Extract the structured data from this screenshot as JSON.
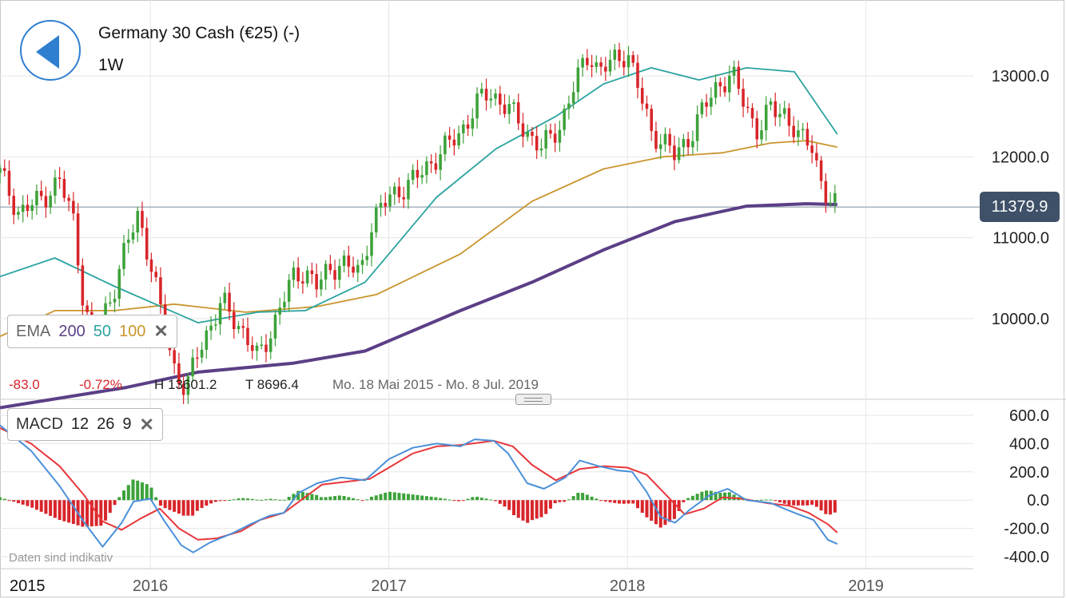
{
  "header": {
    "back_label": "back",
    "title": "Germany 30 Cash (€25) (-)",
    "period": "1W"
  },
  "indicators": {
    "ema": {
      "label": "EMA",
      "periods": [
        "200",
        "50",
        "100"
      ],
      "colors": [
        "#5b3f86",
        "#2aa3a0",
        "#c9952d"
      ],
      "close": "✕"
    },
    "macd": {
      "label": "MACD",
      "params": [
        "12",
        "26",
        "9"
      ],
      "close": "✕"
    }
  },
  "stats": {
    "change": "-83.0",
    "change_pct": "-0.72%",
    "high": "H 13601.2",
    "low": "T 8696.4",
    "range": "Mo. 18 Mai 2015 - Mo. 8 Jul. 2019"
  },
  "current_price": "11379.9",
  "disclaimer": "Daten sind indikativ",
  "colors": {
    "up": "#3da23a",
    "down": "#d8252a",
    "macd_line": "#4a90d9",
    "signal_line": "#e8363a",
    "ema200": "#5b3f86",
    "ema50": "#2aa3a0",
    "ema100": "#c9952d",
    "price_line": "#8a9aa8"
  },
  "chart_data": {
    "type": "candlestick",
    "price_axis": {
      "ticks": [
        "13000.0",
        "12000.0",
        "11000.0",
        "10000.0"
      ],
      "tick_values": [
        13000,
        12000,
        11000,
        10000
      ],
      "range": [
        8900,
        13950
      ]
    },
    "x_axis": {
      "labels": [
        "2015",
        "2016",
        "2017",
        "2018",
        "2019"
      ],
      "years": [
        2015,
        2016,
        2017,
        2018,
        2019
      ],
      "range": [
        2015.37,
        2019.45
      ]
    },
    "ema_waypoints": {
      "ema50": [
        [
          2015.37,
          10520
        ],
        [
          2015.6,
          10750
        ],
        [
          2015.85,
          10400
        ],
        [
          2016.2,
          9950
        ],
        [
          2016.45,
          10080
        ],
        [
          2016.65,
          10100
        ],
        [
          2016.9,
          10450
        ],
        [
          2017.2,
          11500
        ],
        [
          2017.45,
          12100
        ],
        [
          2017.7,
          12500
        ],
        [
          2017.9,
          12900
        ],
        [
          2018.1,
          13100
        ],
        [
          2018.3,
          12950
        ],
        [
          2018.5,
          13100
        ],
        [
          2018.7,
          13050
        ],
        [
          2018.88,
          12280
        ]
      ],
      "ema100": [
        [
          2015.37,
          9780
        ],
        [
          2015.6,
          10100
        ],
        [
          2015.85,
          10100
        ],
        [
          2016.1,
          10180
        ],
        [
          2016.4,
          10080
        ],
        [
          2016.7,
          10150
        ],
        [
          2016.95,
          10300
        ],
        [
          2017.3,
          10800
        ],
        [
          2017.6,
          11450
        ],
        [
          2017.9,
          11850
        ],
        [
          2018.15,
          12000
        ],
        [
          2018.4,
          12050
        ],
        [
          2018.6,
          12170
        ],
        [
          2018.75,
          12200
        ],
        [
          2018.88,
          12120
        ]
      ],
      "ema200": [
        [
          2015.37,
          8900
        ],
        [
          2015.9,
          9150
        ],
        [
          2016.2,
          9340
        ],
        [
          2016.6,
          9450
        ],
        [
          2016.9,
          9600
        ],
        [
          2017.3,
          10100
        ],
        [
          2017.6,
          10450
        ],
        [
          2017.9,
          10850
        ],
        [
          2018.2,
          11200
        ],
        [
          2018.5,
          11390
        ],
        [
          2018.75,
          11420
        ],
        [
          2018.88,
          11410
        ]
      ]
    },
    "candle_path": [
      [
        2015.37,
        11800
      ],
      [
        2015.45,
        11300
      ],
      [
        2015.55,
        11500
      ],
      [
        2015.62,
        11700
      ],
      [
        2015.68,
        11200
      ],
      [
        2015.72,
        10200
      ],
      [
        2015.76,
        9700
      ],
      [
        2015.8,
        10000
      ],
      [
        2015.85,
        10400
      ],
      [
        2015.9,
        10900
      ],
      [
        2015.95,
        11300
      ],
      [
        2016.0,
        10700
      ],
      [
        2016.05,
        10000
      ],
      [
        2016.1,
        9400
      ],
      [
        2016.15,
        9100
      ],
      [
        2016.2,
        9600
      ],
      [
        2016.25,
        9900
      ],
      [
        2016.3,
        10200
      ],
      [
        2016.35,
        10000
      ],
      [
        2016.4,
        9800
      ],
      [
        2016.45,
        9500
      ],
      [
        2016.5,
        9800
      ],
      [
        2016.55,
        10200
      ],
      [
        2016.6,
        10500
      ],
      [
        2016.65,
        10600
      ],
      [
        2016.7,
        10400
      ],
      [
        2016.75,
        10600
      ],
      [
        2016.8,
        10700
      ],
      [
        2016.88,
        10550
      ],
      [
        2016.93,
        11200
      ],
      [
        2017.0,
        11500
      ],
      [
        2017.1,
        11700
      ],
      [
        2017.2,
        12000
      ],
      [
        2017.3,
        12300
      ],
      [
        2017.38,
        12700
      ],
      [
        2017.42,
        12800
      ],
      [
        2017.5,
        12600
      ],
      [
        2017.58,
        12300
      ],
      [
        2017.64,
        12100
      ],
      [
        2017.72,
        12400
      ],
      [
        2017.78,
        12900
      ],
      [
        2017.84,
        13300
      ],
      [
        2017.88,
        13050
      ],
      [
        2017.95,
        13200
      ],
      [
        2018.0,
        13300
      ],
      [
        2018.05,
        12800
      ],
      [
        2018.1,
        12300
      ],
      [
        2018.15,
        12200
      ],
      [
        2018.2,
        12000
      ],
      [
        2018.27,
        12300
      ],
      [
        2018.32,
        12600
      ],
      [
        2018.38,
        12900
      ],
      [
        2018.44,
        13000
      ],
      [
        2018.5,
        12600
      ],
      [
        2018.55,
        12300
      ],
      [
        2018.6,
        12600
      ],
      [
        2018.66,
        12550
      ],
      [
        2018.72,
        12200
      ],
      [
        2018.77,
        12200
      ],
      [
        2018.82,
        11600
      ],
      [
        2018.85,
        11400
      ],
      [
        2018.88,
        11380
      ]
    ],
    "macd_axis": {
      "ticks": [
        "600.0",
        "400.0",
        "200.0",
        "0.0",
        "-200.0",
        "-400.0"
      ],
      "tick_values": [
        600,
        400,
        200,
        0,
        -200,
        -400
      ],
      "range": [
        -440,
        640
      ]
    },
    "macd_line": [
      [
        2015.37,
        530
      ],
      [
        2015.5,
        350
      ],
      [
        2015.62,
        100
      ],
      [
        2015.72,
        -150
      ],
      [
        2015.8,
        -330
      ],
      [
        2015.88,
        -160
      ],
      [
        2015.93,
        -10
      ],
      [
        2016.0,
        10
      ],
      [
        2016.06,
        -150
      ],
      [
        2016.13,
        -320
      ],
      [
        2016.18,
        -370
      ],
      [
        2016.25,
        -300
      ],
      [
        2016.35,
        -230
      ],
      [
        2016.42,
        -170
      ],
      [
        2016.5,
        -110
      ],
      [
        2016.56,
        -90
      ],
      [
        2016.62,
        50
      ],
      [
        2016.7,
        120
      ],
      [
        2016.8,
        160
      ],
      [
        2016.9,
        140
      ],
      [
        2017.0,
        290
      ],
      [
        2017.1,
        370
      ],
      [
        2017.2,
        400
      ],
      [
        2017.3,
        380
      ],
      [
        2017.36,
        430
      ],
      [
        2017.44,
        420
      ],
      [
        2017.5,
        330
      ],
      [
        2017.58,
        120
      ],
      [
        2017.65,
        80
      ],
      [
        2017.74,
        160
      ],
      [
        2017.8,
        280
      ],
      [
        2017.88,
        240
      ],
      [
        2017.96,
        210
      ],
      [
        2018.02,
        200
      ],
      [
        2018.08,
        60
      ],
      [
        2018.14,
        -120
      ],
      [
        2018.2,
        -160
      ],
      [
        2018.26,
        -70
      ],
      [
        2018.34,
        30
      ],
      [
        2018.42,
        80
      ],
      [
        2018.5,
        0
      ],
      [
        2018.6,
        -20
      ],
      [
        2018.7,
        -90
      ],
      [
        2018.78,
        -140
      ],
      [
        2018.84,
        -280
      ],
      [
        2018.88,
        -310
      ]
    ],
    "signal_line": [
      [
        2015.37,
        510
      ],
      [
        2015.5,
        400
      ],
      [
        2015.62,
        240
      ],
      [
        2015.72,
        40
      ],
      [
        2015.8,
        -150
      ],
      [
        2015.88,
        -210
      ],
      [
        2015.96,
        -130
      ],
      [
        2016.04,
        -60
      ],
      [
        2016.12,
        -200
      ],
      [
        2016.2,
        -280
      ],
      [
        2016.28,
        -270
      ],
      [
        2016.38,
        -220
      ],
      [
        2016.46,
        -140
      ],
      [
        2016.56,
        -90
      ],
      [
        2016.64,
        10
      ],
      [
        2016.72,
        110
      ],
      [
        2016.82,
        130
      ],
      [
        2016.92,
        150
      ],
      [
        2017.0,
        230
      ],
      [
        2017.1,
        330
      ],
      [
        2017.2,
        380
      ],
      [
        2017.3,
        390
      ],
      [
        2017.44,
        420
      ],
      [
        2017.52,
        380
      ],
      [
        2017.6,
        250
      ],
      [
        2017.7,
        140
      ],
      [
        2017.8,
        220
      ],
      [
        2017.9,
        240
      ],
      [
        2018.0,
        230
      ],
      [
        2018.08,
        180
      ],
      [
        2018.16,
        40
      ],
      [
        2018.24,
        -100
      ],
      [
        2018.32,
        -60
      ],
      [
        2018.4,
        20
      ],
      [
        2018.48,
        10
      ],
      [
        2018.58,
        -20
      ],
      [
        2018.68,
        -40
      ],
      [
        2018.76,
        -90
      ],
      [
        2018.84,
        -170
      ],
      [
        2018.88,
        -230
      ]
    ]
  }
}
